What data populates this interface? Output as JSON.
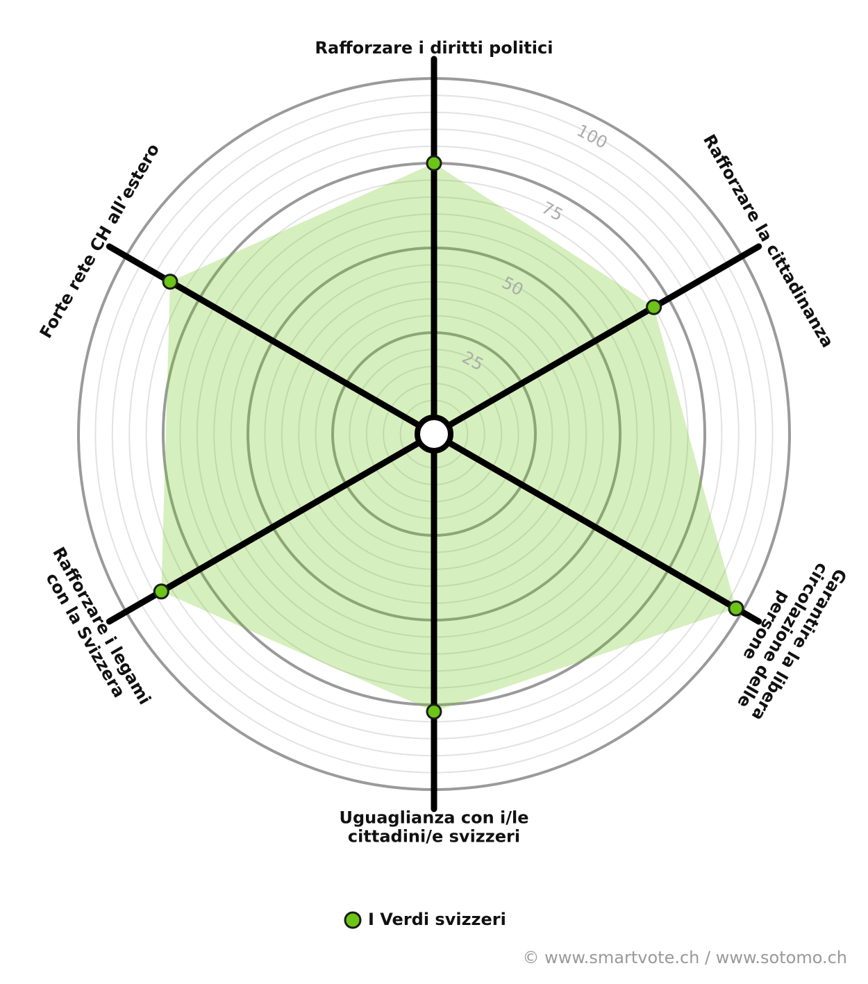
{
  "chart_data": {
    "type": "radar",
    "categories": [
      "Rafforzare i diritti politici",
      "Rafforzare la cittadinanza",
      "Garantire la libera\ncircolazione delle\npersone",
      "Uguaglianza con i/le\ncittadini/e svizzeri",
      "Rafforzare i legami\ncon la Svizzera",
      "Forte rete CH all’estero"
    ],
    "series": [
      {
        "name": "I Verdi svizzeri",
        "color": "#6cc417",
        "values": [
          75,
          70,
          98,
          77,
          88,
          85
        ]
      }
    ],
    "ylim": [
      0,
      100
    ],
    "yticks": [
      25,
      50,
      75,
      100
    ],
    "source": "© www.smartvote.ch / www.sotomo.ch"
  }
}
